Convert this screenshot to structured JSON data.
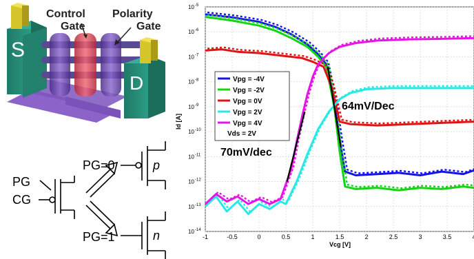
{
  "device": {
    "source_label": "S",
    "drain_label": "D",
    "control_gate_label_line1": "Control",
    "control_gate_label_line2": "Gate",
    "polarity_gate_label_line1": "Polarity",
    "polarity_gate_label_line2": "Gate"
  },
  "schematic": {
    "pg_label": "PG",
    "cg_label": "CG",
    "pg0_label": "PG=0",
    "pg1_label": "PG=1",
    "p_label": "p",
    "n_label": "n"
  },
  "chart_data": {
    "type": "line",
    "xlabel": "Vcg [V]",
    "ylabel": "Id [A]",
    "xlim": [
      -1,
      4
    ],
    "ylim_log10": [
      -14,
      -5
    ],
    "y_scale": "log",
    "grid": true,
    "legend_position": "center-left",
    "x_ticks": [
      "-1",
      "-0.5",
      "0",
      "0.5",
      "1",
      "1.5",
      "2",
      "2.5",
      "3",
      "3.5",
      "4"
    ],
    "y_tick_exponents": [
      -5,
      -6,
      -7,
      -8,
      -9,
      -10,
      -11,
      -12,
      -13,
      -14
    ],
    "y_tick_base": "10",
    "legend_note": "Vds = 2V",
    "annotations": [
      {
        "text": "64mV/Dec"
      },
      {
        "text": "70mV/dec"
      }
    ],
    "series": [
      {
        "name": "Vpg = -4V",
        "color": "#1414e6",
        "x": [
          -1,
          -0.5,
          0,
          0.3,
          0.6,
          0.9,
          1.1,
          1.25,
          1.4,
          1.5,
          1.6,
          1.8,
          2.2,
          2.6,
          3,
          3.4,
          3.8,
          4
        ],
        "log10_y": [
          -5.3,
          -5.42,
          -5.6,
          -5.8,
          -6.1,
          -6.5,
          -6.9,
          -7.3,
          -8.8,
          -10.3,
          -11.6,
          -11.75,
          -11.7,
          -11.65,
          -11.75,
          -11.6,
          -11.7,
          -11.55
        ]
      },
      {
        "name": "Vpg = -2V",
        "color": "#14d414",
        "x": [
          -1,
          -0.5,
          0,
          0.3,
          0.6,
          0.9,
          1.1,
          1.25,
          1.4,
          1.5,
          1.6,
          1.8,
          2.2,
          2.6,
          3,
          3.4,
          3.8,
          4
        ],
        "log10_y": [
          -5.4,
          -5.55,
          -5.75,
          -5.95,
          -6.25,
          -6.6,
          -7.0,
          -7.4,
          -9.0,
          -10.8,
          -12.2,
          -12.3,
          -12.25,
          -12.35,
          -12.25,
          -12.3,
          -12.2,
          -12.25
        ]
      },
      {
        "name": "Vpg = 0V",
        "color": "#e01414",
        "x": [
          -1,
          -0.7,
          -0.4,
          0,
          0.4,
          0.8,
          1.0,
          1.2,
          1.35,
          1.5,
          1.7,
          2.2,
          2.8,
          3.4,
          4
        ],
        "log10_y": [
          -6.75,
          -6.7,
          -6.8,
          -6.85,
          -6.95,
          -7.05,
          -7.2,
          -7.4,
          -8.2,
          -9.6,
          -9.7,
          -9.75,
          -9.7,
          -9.65,
          -9.6
        ]
      },
      {
        "name": "Vpg = 2V",
        "color": "#28e8e8",
        "x": [
          -1,
          -0.8,
          -0.6,
          -0.4,
          -0.2,
          0,
          0.2,
          0.4,
          0.5,
          0.7,
          0.9,
          1.1,
          1.3,
          1.5,
          1.7,
          2.0,
          2.5,
          3.0,
          3.5,
          4
        ],
        "log10_y": [
          -13.0,
          -12.6,
          -13.2,
          -12.8,
          -13.3,
          -12.9,
          -13.1,
          -12.8,
          -12.9,
          -12.0,
          -10.9,
          -9.9,
          -9.2,
          -8.7,
          -8.45,
          -8.3,
          -8.25,
          -8.25,
          -8.25,
          -8.25
        ]
      },
      {
        "name": "Vpg = 4V",
        "color": "#e614e6",
        "x": [
          -1,
          -0.8,
          -0.6,
          -0.4,
          -0.2,
          0,
          0.2,
          0.4,
          0.6,
          0.7,
          0.8,
          0.9,
          1.0,
          1.1,
          1.3,
          1.5,
          1.8,
          2.2,
          2.8,
          3.4,
          4
        ],
        "log10_y": [
          -12.9,
          -12.5,
          -12.8,
          -12.6,
          -12.9,
          -12.7,
          -12.9,
          -12.7,
          -11.5,
          -10.4,
          -9.4,
          -8.5,
          -7.8,
          -7.3,
          -6.85,
          -6.6,
          -6.45,
          -6.35,
          -6.3,
          -6.28,
          -6.25
        ]
      }
    ]
  }
}
